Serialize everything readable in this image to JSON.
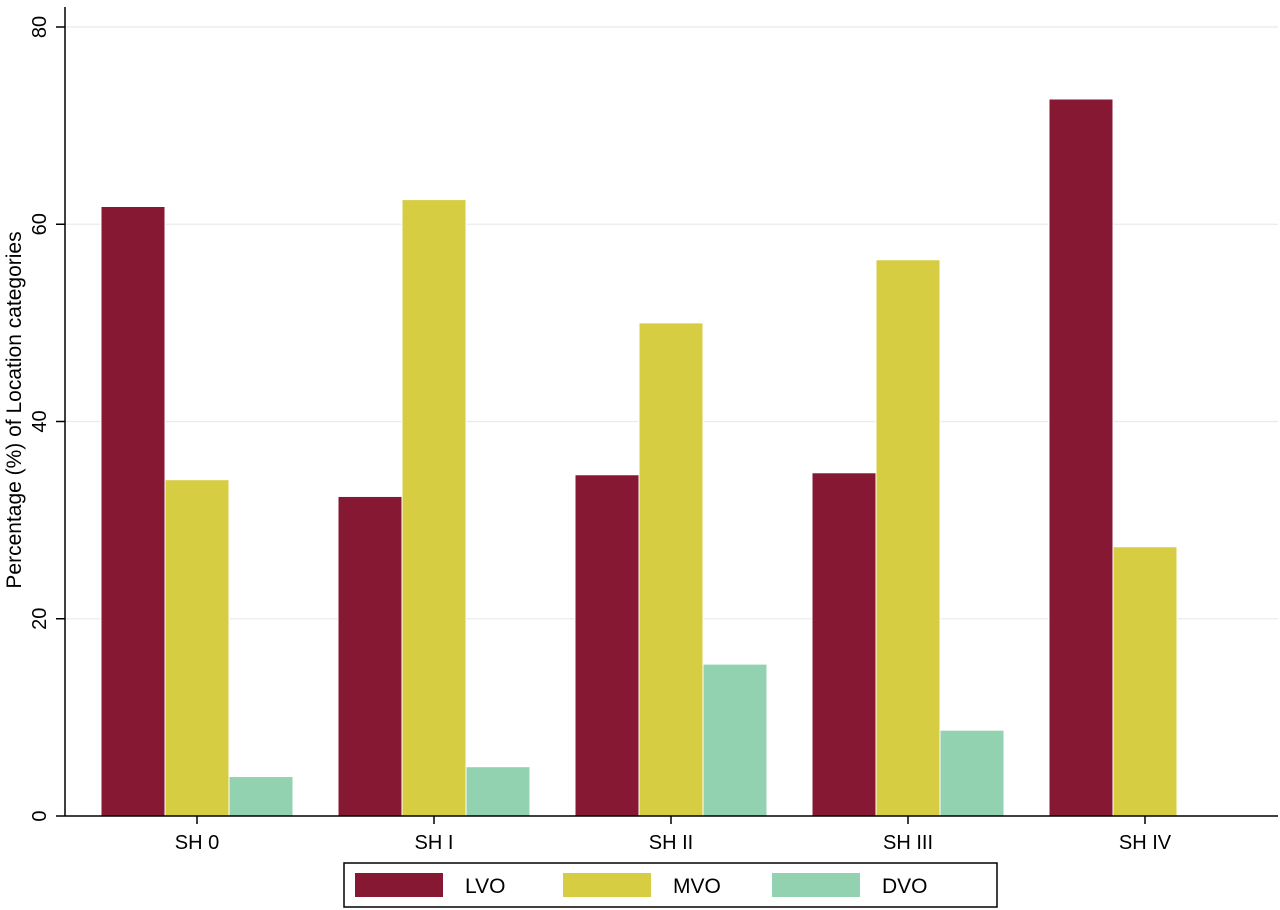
{
  "chart_data": {
    "type": "bar",
    "title": "",
    "xlabel": "",
    "ylabel": "Percentage (%) of Location categories",
    "categories": [
      "SH 0",
      "SH I",
      "SH II",
      "SH III",
      "SH IV"
    ],
    "series": [
      {
        "name": "LVO",
        "color": "#861833",
        "values": [
          61.8,
          32.4,
          34.6,
          34.8,
          72.7
        ]
      },
      {
        "name": "MVO",
        "color": "#d6cd43",
        "values": [
          34.1,
          62.5,
          50.0,
          56.4,
          27.3
        ]
      },
      {
        "name": "DVO",
        "color": "#93d2b0",
        "values": [
          4.0,
          5.0,
          15.4,
          8.7,
          0.0
        ]
      }
    ],
    "ylim": [
      0,
      80
    ],
    "yticks": [
      0,
      20,
      40,
      60,
      80
    ],
    "grid": true,
    "legend_position": "bottom"
  }
}
